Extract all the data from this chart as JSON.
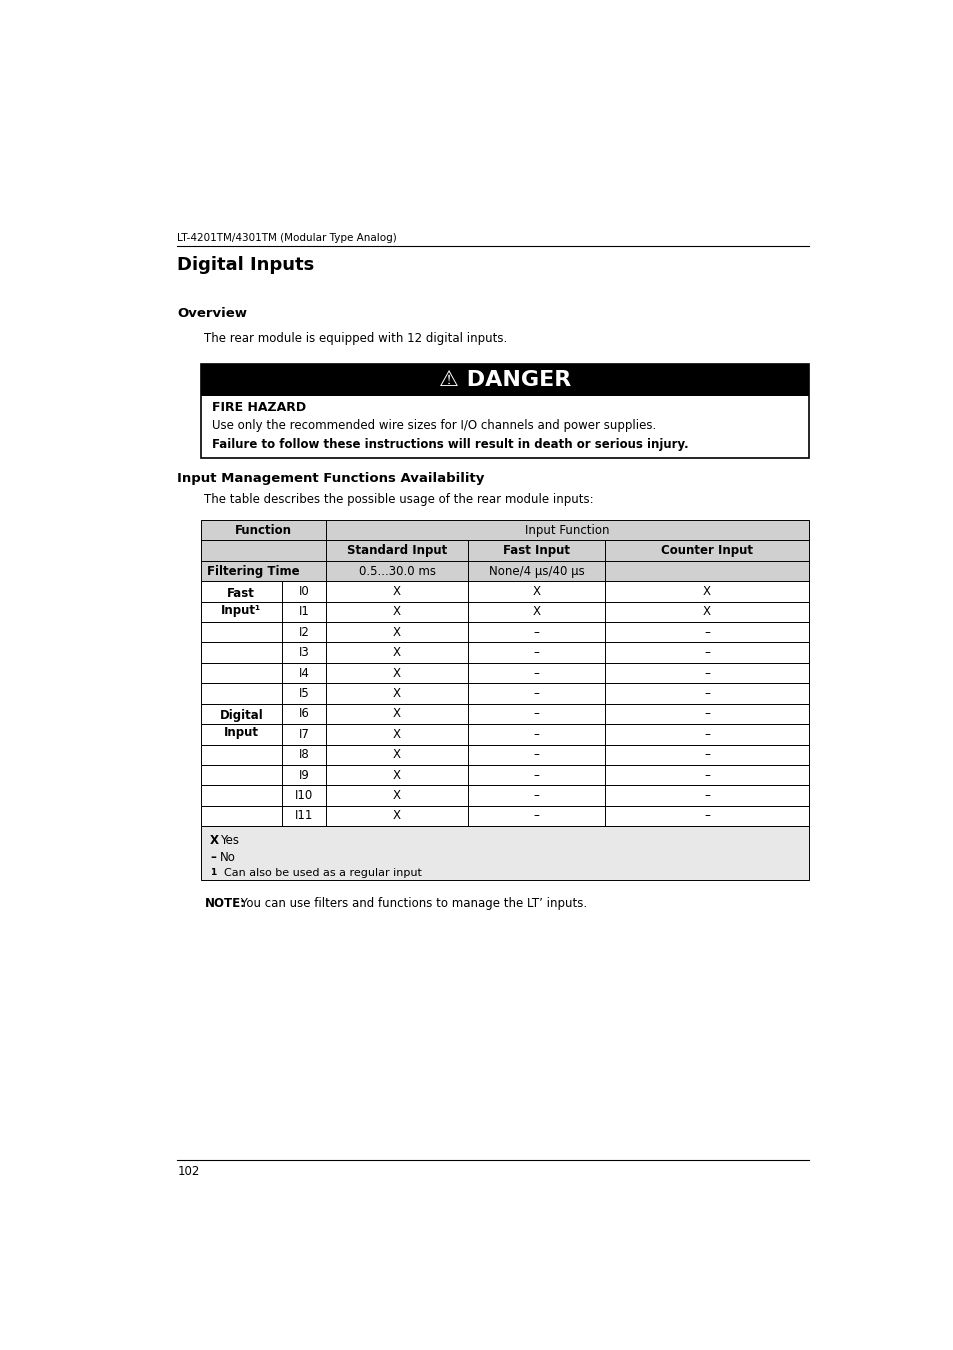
{
  "page_width": 9.54,
  "page_height": 13.5,
  "bg_color": "#ffffff",
  "header_text": "LT-4201TM/4301TM (Modular Type Analog)",
  "title": "Digital Inputs",
  "section1_heading": "Overview",
  "section1_body": "The rear module is equipped with 12 digital inputs.",
  "danger_title": "⚠ DANGER",
  "danger_subtitle": "FIRE HAZARD",
  "danger_line1": "Use only the recommended wire sizes for I/O channels and power supplies.",
  "danger_line2": "Failure to follow these instructions will result in death or serious injury.",
  "section2_heading": "Input Management Functions Availability",
  "section2_body": "The table describes the possible usage of the rear module inputs:",
  "note_bold": "NOTE:",
  "note_rest": " You can use filters and functions to manage the LT’ inputs.",
  "page_number": "102",
  "table_col_span_header": "Input Function",
  "table_function_header": "Function",
  "table_sub_headers": [
    "Standard Input",
    "Fast Input",
    "Counter Input"
  ],
  "table_filtering_label": "Filtering Time",
  "table_filtering_values": [
    "0.5...30.0 ms",
    "None/4 μs/40 μs",
    ""
  ],
  "table_rows": [
    [
      "Fast",
      "Input¹",
      "I0",
      "X",
      "X",
      "X"
    ],
    [
      "",
      "",
      "I1",
      "X",
      "X",
      "X"
    ],
    [
      "Digital",
      "Input",
      "I2",
      "X",
      "–",
      "–"
    ],
    [
      "",
      "",
      "I3",
      "X",
      "–",
      "–"
    ],
    [
      "",
      "",
      "I4",
      "X",
      "–",
      "–"
    ],
    [
      "",
      "",
      "I5",
      "X",
      "–",
      "–"
    ],
    [
      "",
      "",
      "I6",
      "X",
      "–",
      "–"
    ],
    [
      "",
      "",
      "I7",
      "X",
      "–",
      "–"
    ],
    [
      "",
      "",
      "I8",
      "X",
      "–",
      "–"
    ],
    [
      "",
      "",
      "I9",
      "X",
      "–",
      "–"
    ],
    [
      "",
      "",
      "I10",
      "X",
      "–",
      "–"
    ],
    [
      "",
      "",
      "I11",
      "X",
      "–",
      "–"
    ]
  ],
  "legend_x_bold": "X",
  "legend_x_text": "  Yes",
  "legend_dash_bold": "–",
  "legend_dash_text": "  No",
  "legend_sup_bold": "1",
  "legend_sup_text": "   Can also be used as a regular input"
}
